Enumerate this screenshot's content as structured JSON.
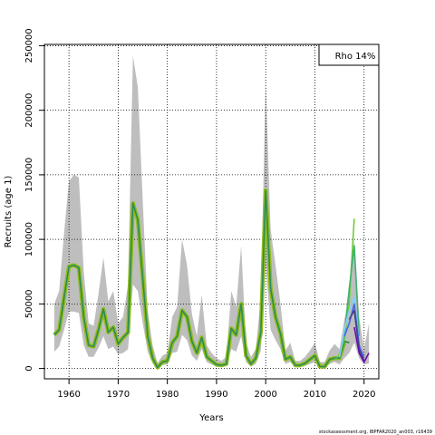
{
  "chart_data": {
    "type": "line",
    "title": "",
    "xlabel": "Years",
    "ylabel": "Recruits (age 1)",
    "xlim": [
      1955,
      2023
    ],
    "ylim": [
      -8000,
      251000
    ],
    "grid": true,
    "legend_position": "top-right",
    "legend_text": "Rho 14%",
    "x_ticks": [
      1960,
      1970,
      1980,
      1990,
      2000,
      2010,
      2020
    ],
    "x_tick_labels": [
      "1960",
      "1970",
      "1980",
      "1990",
      "2000",
      "2010",
      "2020"
    ],
    "y_ticks": [
      0,
      50000,
      100000,
      150000,
      200000,
      250000
    ],
    "y_tick_labels": [
      "0",
      "50000",
      "100000",
      "150000",
      "200000",
      "250000"
    ],
    "colors": {
      "band": "#bebebe",
      "main_outer": "#8fbc1c",
      "main_inner": "#2e8b57",
      "retro_lines": [
        "#228b22",
        "#6ecb3c",
        "#3cb371",
        "#87cefa",
        "#4169e1",
        "#483d8b",
        "#6a0dad",
        "#000000"
      ]
    },
    "band": {
      "x": [
        1957,
        1958,
        1959,
        1960,
        1961,
        1962,
        1963,
        1964,
        1965,
        1966,
        1967,
        1968,
        1969,
        1970,
        1971,
        1972,
        1973,
        1974,
        1975,
        1976,
        1977,
        1978,
        1979,
        1980,
        1981,
        1982,
        1983,
        1984,
        1985,
        1986,
        1987,
        1988,
        1989,
        1990,
        1991,
        1992,
        1993,
        1994,
        1995,
        1996,
        1997,
        1998,
        1999,
        2000,
        2001,
        2002,
        2003,
        2004,
        2005,
        2006,
        2007,
        2008,
        2009,
        2010,
        2011,
        2012,
        2013,
        2014,
        2015,
        2016,
        2017,
        2018,
        2019,
        2020,
        2021
      ],
      "upper": [
        50000,
        60000,
        105000,
        145000,
        150000,
        148000,
        75000,
        35000,
        33000,
        58000,
        86000,
        52000,
        60000,
        35000,
        40000,
        65000,
        242000,
        218000,
        130000,
        45000,
        18000,
        4000,
        10000,
        12000,
        40000,
        48000,
        100000,
        80000,
        42000,
        25000,
        57000,
        18000,
        12000,
        8000,
        6000,
        9000,
        60000,
        48000,
        95000,
        20000,
        9000,
        15000,
        55000,
        222000,
        108000,
        80000,
        50000,
        14000,
        20000,
        6000,
        6000,
        9000,
        14000,
        20000,
        5000,
        5000,
        14000,
        19000,
        15000,
        38000,
        55000,
        100000,
        40000,
        15000,
        35000
      ],
      "lower": [
        13000,
        17000,
        30000,
        44000,
        44000,
        43000,
        18000,
        9000,
        9000,
        16000,
        25000,
        15000,
        17000,
        11000,
        12000,
        15000,
        65000,
        60000,
        35000,
        13000,
        4000,
        500,
        2500,
        3000,
        12000,
        13000,
        26000,
        22000,
        10000,
        6000,
        15000,
        5000,
        3000,
        1500,
        1000,
        2000,
        15000,
        13000,
        25000,
        5000,
        1500,
        3500,
        14000,
        80000,
        30000,
        22000,
        15000,
        3500,
        5000,
        1000,
        1000,
        2000,
        3500,
        5000,
        500,
        500,
        3500,
        5000,
        3000,
        8000,
        12000,
        20000,
        8000,
        3000,
        4000
      ]
    },
    "series": [
      {
        "x": [
          1957,
          1958,
          1959,
          1960,
          1961,
          1962,
          1963,
          1964,
          1965,
          1966,
          1967,
          1968,
          1969,
          1970,
          1971,
          1972,
          1973,
          1974,
          1975,
          1976,
          1977,
          1978,
          1979,
          1980,
          1981,
          1982,
          1983,
          1984,
          1985,
          1986,
          1987,
          1988,
          1989,
          1990,
          1991,
          1992,
          1993,
          1994,
          1995,
          1996,
          1997,
          1998,
          1999,
          2000,
          2001,
          2002,
          2003,
          2004,
          2005,
          2006,
          2007,
          2008,
          2009,
          2010,
          2011,
          2012,
          2013,
          2014,
          2015,
          2016
        ],
        "values": [
          26000,
          30000,
          55000,
          79000,
          80000,
          78000,
          40000,
          18000,
          17000,
          30000,
          46000,
          28000,
          32000,
          19000,
          24000,
          28000,
          128000,
          115000,
          70000,
          25000,
          8000,
          800,
          5000,
          6000,
          20000,
          25000,
          45000,
          40000,
          21000,
          12000,
          24000,
          9000,
          6000,
          3000,
          2500,
          3500,
          31000,
          26000,
          50000,
          10000,
          3500,
          8000,
          28000,
          138000,
          62000,
          40000,
          27000,
          7000,
          9000,
          2500,
          2500,
          4000,
          7000,
          10000,
          1500,
          1500,
          7000,
          8000,
          8000,
          20000
        ]
      },
      {
        "x": [
          2014,
          2015,
          2016,
          2017
        ],
        "values": [
          8000,
          8500,
          21000,
          20000
        ]
      },
      {
        "x": [
          2014,
          2015,
          2016,
          2017,
          2018
        ],
        "values": [
          7500,
          9000,
          23000,
          52000,
          116000
        ]
      },
      {
        "x": [
          2014,
          2015,
          2016,
          2017,
          2018,
          2019
        ],
        "values": [
          7500,
          9000,
          26000,
          62000,
          95000,
          25000
        ]
      },
      {
        "x": [
          2015,
          2016,
          2017,
          2018,
          2019
        ],
        "values": [
          9000,
          30000,
          45000,
          55000,
          20000
        ]
      },
      {
        "x": [
          2016,
          2017,
          2018,
          2019,
          2020
        ],
        "values": [
          25000,
          35000,
          50000,
          18000,
          8000
        ]
      },
      {
        "x": [
          2017,
          2018,
          2019,
          2020
        ],
        "values": [
          38000,
          45000,
          15000,
          6000
        ]
      },
      {
        "x": [
          2018,
          2019,
          2020,
          2021
        ],
        "values": [
          32000,
          12000,
          5000,
          12000
        ]
      }
    ]
  },
  "footer_text": "stockassessment.org, IBPFAR2020_an003, r16439"
}
